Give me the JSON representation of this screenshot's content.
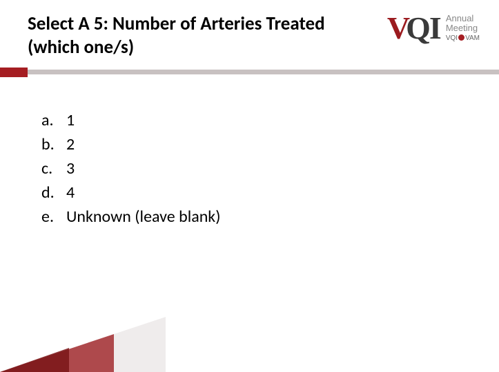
{
  "title": "Select A 5:  Number of Arteries Treated (which one/s)",
  "logo": {
    "v": "V",
    "q": "Q",
    "i": "I",
    "annual": "Annual",
    "meeting": "Meeting",
    "vqivam_prefix": "VQI",
    "vqivam_suffix": "VAM"
  },
  "options": [
    {
      "letter": "a.",
      "text": "1"
    },
    {
      "letter": "b.",
      "text": "2"
    },
    {
      "letter": "c.",
      "text": "3"
    },
    {
      "letter": "d.",
      "text": "4"
    },
    {
      "letter": "e.",
      "text": "Unknown (leave blank)"
    }
  ],
  "colors": {
    "accent_red": "#a51d22",
    "divider_gray": "#c8c1c1",
    "logo_gray": "#3a3a3a",
    "logo_text_gray": "#888888",
    "bg_triangle_light": "#efecec",
    "bg_triangle_mid": "#9b1b1f",
    "bg_triangle_dark": "#7a1518"
  },
  "typography": {
    "title_fontsize": 27,
    "title_weight": "bold",
    "option_fontsize": 24,
    "logo_main_fontsize": 46,
    "logo_sub_fontsize": 13
  }
}
